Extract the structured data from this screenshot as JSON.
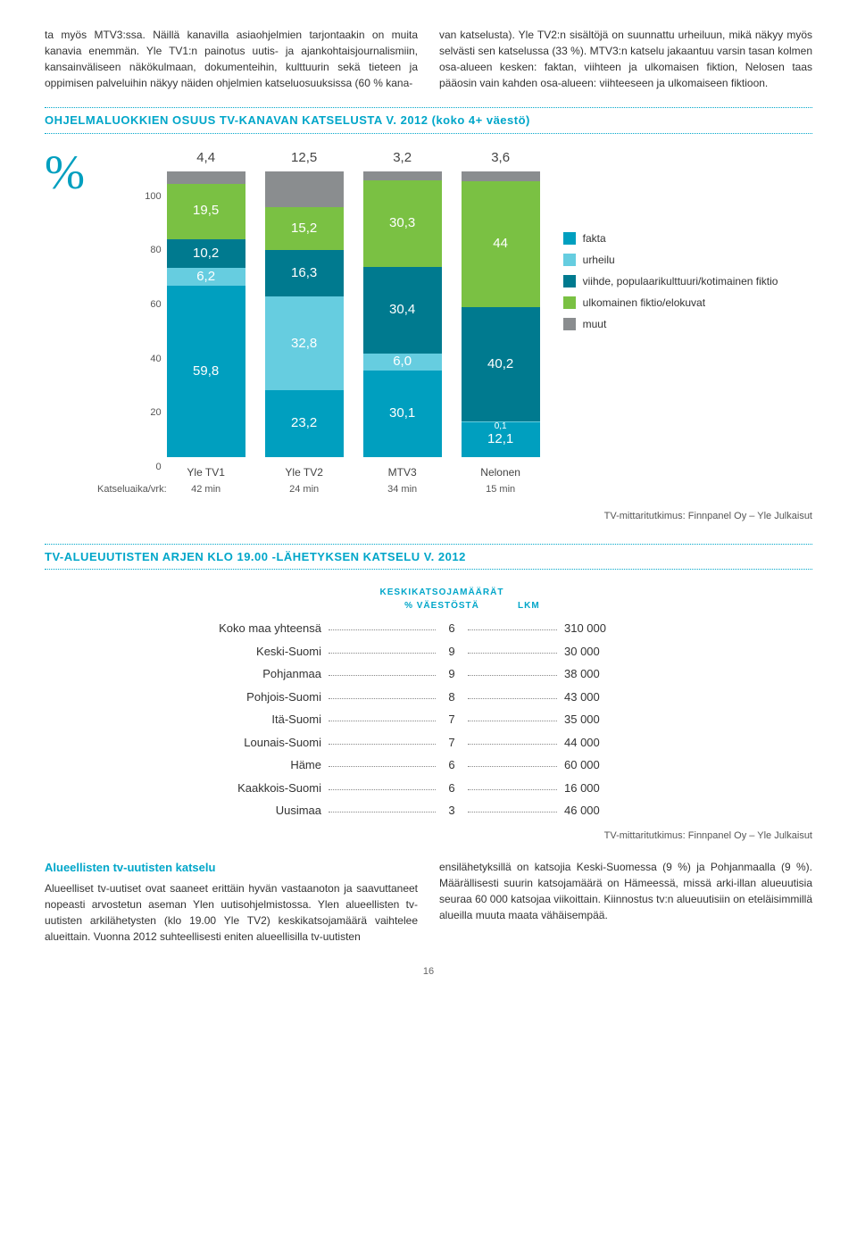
{
  "intro": {
    "left": "ta myös MTV3:ssa. Näillä kanavilla asiaohjelmien tarjontaakin on muita kanavia enemmän. Yle TV1:n painotus uutis- ja ajankohtaisjournalismiin, kansainväliseen näkökulmaan, dokumenteihin, kulttuurin sekä tieteen ja oppimisen palveluihin näkyy näiden ohjelmien katseluosuuksissa (60 % kana-",
    "right": "van katselusta). Yle TV2:n sisältöjä on suunnattu urheiluun, mikä näkyy myös selvästi sen katselussa (33 %). MTV3:n katselu jakaantuu varsin tasan kolmen osa-alueen kesken: faktan, viihteen ja ulkomaisen fiktion, Nelosen taas pääosin vain kahden osa-alueen: viihteeseen ja ulkomaiseen fiktioon."
  },
  "chart": {
    "title": "OHJELMALUOKKIEN OSUUS TV-KANAVAN KATSELUSTA V. 2012 (koko 4+ väestö)",
    "ymax": 100,
    "yticks": [
      "100",
      "80",
      "60",
      "40",
      "20",
      "0"
    ],
    "pct_symbol": "%",
    "katsel_label": "Katseluaika/vrk:",
    "colors": {
      "fakta": "#009fbf",
      "urheilu": "#66cde0",
      "viihde": "#007a8f",
      "ulkom": "#7ac143",
      "muut": "#8a8d8f"
    },
    "legend": [
      {
        "label": "fakta",
        "color": "#009fbf"
      },
      {
        "label": "urheilu",
        "color": "#66cde0"
      },
      {
        "label": "viihde, populaarikulttuuri/kotimainen fiktio",
        "color": "#007a8f"
      },
      {
        "label": "ulkomainen fiktio/elokuvat",
        "color": "#7ac143"
      },
      {
        "label": "muut",
        "color": "#8a8d8f"
      }
    ],
    "bars": [
      {
        "name": "Yle TV1",
        "min": "42 min",
        "top": "4,4",
        "segs": [
          {
            "k": "fakta",
            "v": 59.8,
            "t": "59,8"
          },
          {
            "k": "urheilu",
            "v": 6.2,
            "t": "6,2"
          },
          {
            "k": "viihde",
            "v": 10.2,
            "t": "10,2"
          },
          {
            "k": "ulkom",
            "v": 19.5,
            "t": "19,5"
          },
          {
            "k": "muut",
            "v": 4.4,
            "t": ""
          }
        ]
      },
      {
        "name": "Yle TV2",
        "min": "24 min",
        "top": "12,5",
        "segs": [
          {
            "k": "fakta",
            "v": 23.2,
            "t": "23,2"
          },
          {
            "k": "urheilu",
            "v": 32.8,
            "t": "32,8"
          },
          {
            "k": "viihde",
            "v": 16.3,
            "t": "16,3"
          },
          {
            "k": "ulkom",
            "v": 15.2,
            "t": "15,2"
          },
          {
            "k": "muut",
            "v": 12.5,
            "t": ""
          }
        ]
      },
      {
        "name": "MTV3",
        "min": "34 min",
        "top": "3,2",
        "segs": [
          {
            "k": "fakta",
            "v": 30.1,
            "t": "30,1"
          },
          {
            "k": "urheilu",
            "v": 6.0,
            "t": "6,0"
          },
          {
            "k": "viihde",
            "v": 30.4,
            "t": "30,4"
          },
          {
            "k": "ulkom",
            "v": 30.3,
            "t": "30,3"
          },
          {
            "k": "muut",
            "v": 3.2,
            "t": ""
          }
        ]
      },
      {
        "name": "Nelonen",
        "min": "15 min",
        "top": "3,6",
        "segs": [
          {
            "k": "fakta",
            "v": 12.1,
            "t": "12,1"
          },
          {
            "k": "urheilu",
            "v": 0.1,
            "t": "0,1",
            "small": true
          },
          {
            "k": "viihde",
            "v": 40.2,
            "t": "40,2"
          },
          {
            "k": "ulkom",
            "v": 44.0,
            "t": "44"
          },
          {
            "k": "muut",
            "v": 3.6,
            "t": ""
          }
        ]
      }
    ],
    "source": "TV-mittaritutkimus: Finnpanel Oy – Yle Julkaisut"
  },
  "table": {
    "title": "TV-ALUEUUTISTEN ARJEN KLO 19.00 -LÄHETYKSEN KATSELU V. 2012",
    "head1": "KESKIKATSOJAMÄÄRÄT",
    "head2": "% VÄESTÖSTÄ",
    "head3": "LKM",
    "rows": [
      {
        "r": "Koko maa yhteensä",
        "p": "6",
        "n": "310 000"
      },
      {
        "r": "Keski-Suomi",
        "p": "9",
        "n": "30 000"
      },
      {
        "r": "Pohjanmaa",
        "p": "9",
        "n": "38 000"
      },
      {
        "r": "Pohjois-Suomi",
        "p": "8",
        "n": "43 000"
      },
      {
        "r": "Itä-Suomi",
        "p": "7",
        "n": "35 000"
      },
      {
        "r": "Lounais-Suomi",
        "p": "7",
        "n": "44 000"
      },
      {
        "r": "Häme",
        "p": "6",
        "n": "60 000"
      },
      {
        "r": "Kaakkois-Suomi",
        "p": "6",
        "n": "16 000"
      },
      {
        "r": "Uusimaa",
        "p": "3",
        "n": "46 000"
      }
    ],
    "source": "TV-mittaritutkimus: Finnpanel Oy – Yle Julkaisut"
  },
  "para": {
    "title": "Alueellisten tv-uutisten katselu",
    "left": "Alueelliset tv-uutiset ovat saaneet erittäin hyvän vastaanoton ja saavuttaneet nopeasti arvostetun aseman Ylen uutisohjelmistossa. Ylen alueellisten tv-uutisten arkilähetysten (klo 19.00 Yle TV2) keskikatsojamäärä vaihtelee alueittain. Vuonna 2012 suhteellisesti eniten alueellisilla tv-uutisten",
    "right": "ensilähetyksillä on katsojia Keski-Suomessa (9 %) ja Pohjanmaalla (9 %). Määrällisesti suurin katsojamäärä on Hämeessä, missä arki-illan alueuutisia seuraa 60 000 katsojaa viikoittain. Kiinnostus tv:n alueuutisiin on eteläisimmillä alueilla muuta maata vähäisempää."
  },
  "page": "16"
}
